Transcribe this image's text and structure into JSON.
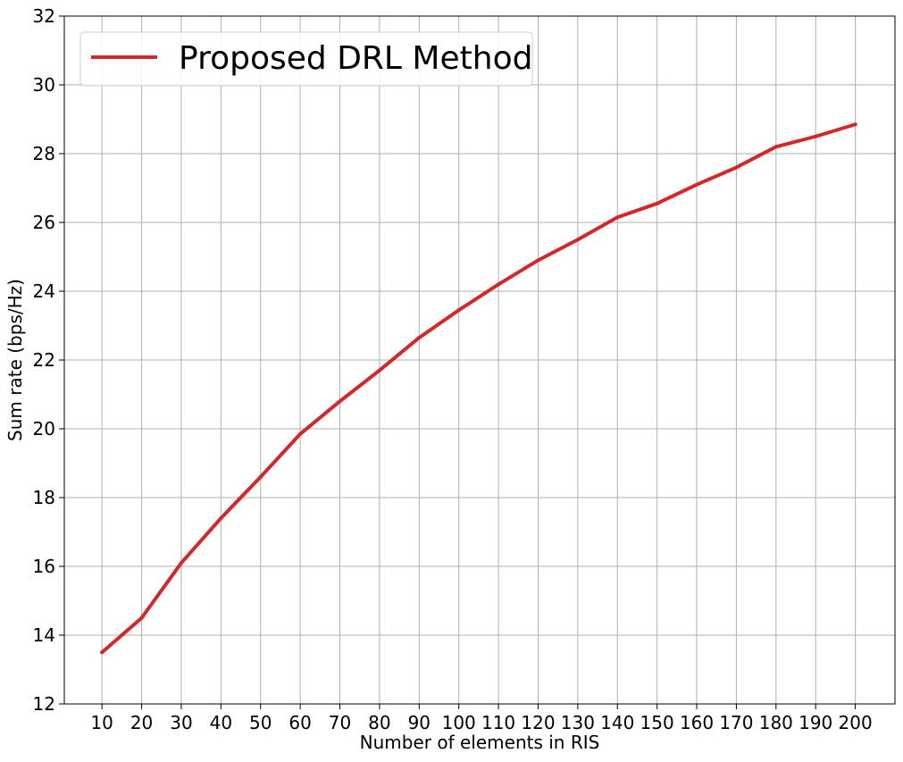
{
  "chart_data": {
    "type": "line",
    "title": "",
    "xlabel": "Number of elements in RIS",
    "ylabel": "Sum rate (bps/Hz)",
    "x": [
      10,
      20,
      30,
      40,
      50,
      60,
      70,
      80,
      90,
      100,
      110,
      120,
      130,
      140,
      150,
      160,
      170,
      180,
      190,
      200
    ],
    "xticks": [
      "10",
      "20",
      "30",
      "40",
      "50",
      "60",
      "70",
      "80",
      "90",
      "100",
      "110",
      "120",
      "130",
      "140",
      "150",
      "160",
      "170",
      "180",
      "190",
      "200"
    ],
    "xlim": [
      0.5,
      210
    ],
    "ylim": [
      12,
      32
    ],
    "yticks": [
      "12",
      "14",
      "16",
      "18",
      "20",
      "22",
      "24",
      "26",
      "28",
      "30",
      "32"
    ],
    "grid": true,
    "legend_position": "top-left",
    "series": [
      {
        "name": "Proposed DRL Method",
        "color": "#d62728",
        "values": [
          13.5,
          14.5,
          16.1,
          17.4,
          18.6,
          19.85,
          20.8,
          21.7,
          22.65,
          23.45,
          24.2,
          24.9,
          25.5,
          26.15,
          26.55,
          27.1,
          27.6,
          28.2,
          28.5,
          28.85
        ]
      }
    ]
  }
}
